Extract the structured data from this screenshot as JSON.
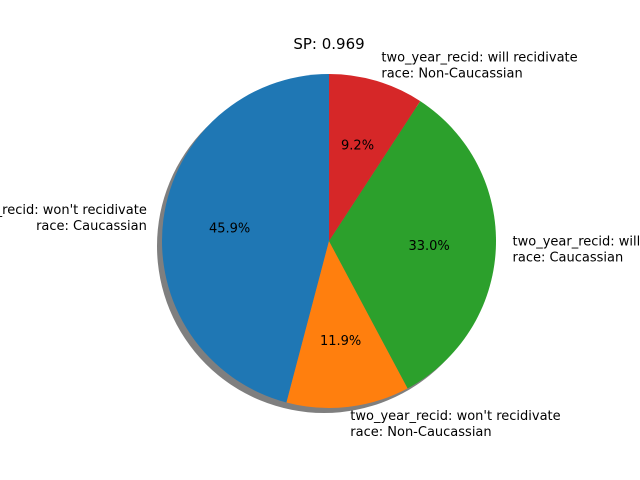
{
  "chart_data": {
    "type": "pie",
    "title": "SP: 0.969",
    "startangle_deg": 90,
    "direction": "counterclockwise",
    "shadow": true,
    "slices": [
      {
        "line1": "two_year_recid: won't recidivate",
        "line2": "race: Caucassian",
        "percent_label": "45.9%",
        "value": 45.9,
        "color": "#1f77b4"
      },
      {
        "line1": "two_year_recid: won't recidivate",
        "line2": "race: Non-Caucassian",
        "percent_label": "11.9%",
        "value": 11.9,
        "color": "#ff7f0e"
      },
      {
        "line1": "two_year_recid: will recidivate",
        "line2": "race: Caucassian",
        "percent_label": "33.0%",
        "value": 33.0,
        "color": "#2ca02c"
      },
      {
        "line1": "two_year_recid: will recidivate",
        "line2": "race: Non-Caucassian",
        "percent_label": "9.2%",
        "value": 9.2,
        "color": "#d62728"
      }
    ]
  }
}
